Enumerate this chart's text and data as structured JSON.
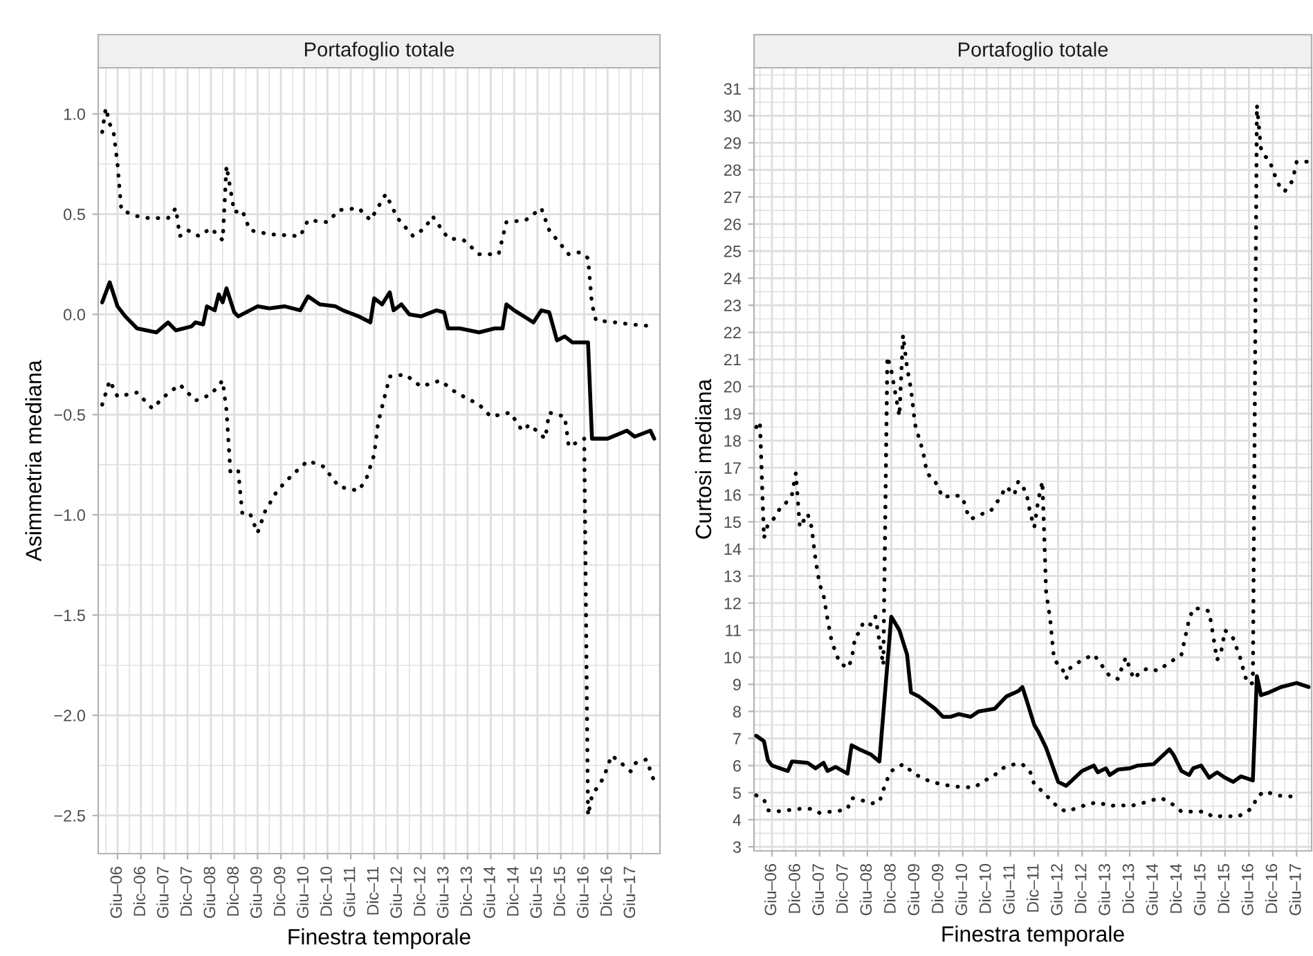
{
  "chart_data": [
    {
      "type": "line",
      "title": "Portafoglio totale",
      "xlabel": "Finestra temporale",
      "ylabel": "Asimmetria mediana",
      "grid": true,
      "xlim": [
        "2006-01-01",
        "2018-01-15"
      ],
      "ylim": [
        -2.69,
        1.23
      ],
      "xticks": [
        {
          "value": "2006-06-01",
          "label": "Giu–06"
        },
        {
          "value": "2006-12-01",
          "label": "Dic–06"
        },
        {
          "value": "2007-06-01",
          "label": "Giu–07"
        },
        {
          "value": "2007-12-01",
          "label": "Dic–07"
        },
        {
          "value": "2008-06-01",
          "label": "Giu–08"
        },
        {
          "value": "2008-12-01",
          "label": "Dic–08"
        },
        {
          "value": "2009-06-01",
          "label": "Giu–09"
        },
        {
          "value": "2009-12-01",
          "label": "Dic–09"
        },
        {
          "value": "2010-06-01",
          "label": "Giu–10"
        },
        {
          "value": "2010-12-01",
          "label": "Dic–10"
        },
        {
          "value": "2011-06-01",
          "label": "Giu–11"
        },
        {
          "value": "2011-12-01",
          "label": "Dic–11"
        },
        {
          "value": "2012-06-01",
          "label": "Giu–12"
        },
        {
          "value": "2012-12-01",
          "label": "Dic–12"
        },
        {
          "value": "2013-06-01",
          "label": "Giu–13"
        },
        {
          "value": "2013-12-01",
          "label": "Dic–13"
        },
        {
          "value": "2014-06-01",
          "label": "Giu–14"
        },
        {
          "value": "2014-12-01",
          "label": "Dic–14"
        },
        {
          "value": "2015-06-01",
          "label": "Giu–15"
        },
        {
          "value": "2015-12-01",
          "label": "Dic–15"
        },
        {
          "value": "2016-06-01",
          "label": "Giu–16"
        },
        {
          "value": "2016-12-01",
          "label": "Dic–16"
        },
        {
          "value": "2017-06-01",
          "label": "Giu–17"
        }
      ],
      "yticks": [
        {
          "value": 1,
          "label": "1.0"
        },
        0.5,
        {
          "value": 0,
          "label": "0.0"
        },
        {
          "value": -0.5,
          "label": "−0.5"
        },
        {
          "value": -1,
          "label": "−1.0"
        },
        {
          "value": -1.5,
          "label": "−1.5"
        },
        {
          "value": -2,
          "label": "−2.0"
        },
        {
          "value": -2.5,
          "label": "−2.5"
        }
      ],
      "series": [
        {
          "color": "#000000",
          "line_style": "dotted",
          "x": [
            "2006-02",
            "2006-03",
            "2006-04",
            "2006-05",
            "2006-06",
            "2006-07",
            "2006-11",
            "2007-02",
            "2007-07",
            "2007-09",
            "2007-10",
            "2007-12",
            "2008-03",
            "2008-06",
            "2008-09",
            "2008-10",
            "2008-12",
            "2009-02",
            "2009-04",
            "2009-09",
            "2010-05",
            "2010-07",
            "2010-12",
            "2011-03",
            "2011-08",
            "2011-11",
            "2012-03",
            "2012-06",
            "2012-10",
            "2013-01",
            "2013-03",
            "2013-07",
            "2013-11",
            "2014-03",
            "2014-08",
            "2014-10",
            "2015-03",
            "2015-07",
            "2015-09",
            "2016-02",
            "2016-05",
            "2016-07",
            "2016-08",
            "2016-09",
            "2017-02",
            "2017-06",
            "2017-12"
          ],
          "values": [
            0.91,
            1.03,
            0.95,
            0.91,
            0.75,
            0.52,
            0.49,
            0.48,
            0.48,
            0.53,
            0.39,
            0.42,
            0.39,
            0.43,
            0.37,
            0.74,
            0.51,
            0.52,
            0.42,
            0.4,
            0.39,
            0.47,
            0.46,
            0.52,
            0.53,
            0.47,
            0.6,
            0.48,
            0.39,
            0.43,
            0.49,
            0.38,
            0.37,
            0.3,
            0.3,
            0.46,
            0.47,
            0.53,
            0.42,
            0.3,
            0.31,
            0.28,
            0.05,
            -0.03,
            -0.04,
            -0.05,
            -0.06
          ]
        },
        {
          "color": "#000000",
          "line_style": "solid",
          "x": [
            "2006-02",
            "2006-04",
            "2006-06",
            "2006-08",
            "2006-11",
            "2007-04",
            "2007-07",
            "2007-09",
            "2008-01",
            "2008-02",
            "2008-04",
            "2008-05",
            "2008-07",
            "2008-08",
            "2008-09",
            "2008-10",
            "2008-12",
            "2009-01",
            "2009-06",
            "2009-09",
            "2010-01",
            "2010-05",
            "2010-07",
            "2010-10",
            "2011-02",
            "2011-04",
            "2011-08",
            "2011-11",
            "2011-12",
            "2012-02",
            "2012-04",
            "2012-05",
            "2012-07",
            "2012-09",
            "2012-12",
            "2013-04",
            "2013-06",
            "2013-07",
            "2013-10",
            "2014-03",
            "2014-07",
            "2014-09",
            "2014-10",
            "2014-12",
            "2015-05",
            "2015-07",
            "2015-09",
            "2015-11",
            "2016-01",
            "2016-03",
            "2016-06",
            "2016-07",
            "2016-08",
            "2016-12",
            "2017-05",
            "2017-07",
            "2017-11",
            "2017-12"
          ],
          "values": [
            0.06,
            0.16,
            0.04,
            -0.01,
            -0.07,
            -0.09,
            -0.04,
            -0.08,
            -0.06,
            -0.04,
            -0.05,
            0.04,
            0.02,
            0.1,
            0.06,
            0.13,
            0.01,
            -0.01,
            0.04,
            0.03,
            0.04,
            0.02,
            0.09,
            0.05,
            0.04,
            0.02,
            -0.01,
            -0.04,
            0.08,
            0.05,
            0.11,
            0.02,
            0.05,
            0.0,
            -0.01,
            0.02,
            0.01,
            -0.07,
            -0.07,
            -0.09,
            -0.07,
            -0.07,
            0.05,
            0.02,
            -0.04,
            0.02,
            0.01,
            -0.13,
            -0.11,
            -0.14,
            -0.14,
            -0.14,
            -0.62,
            -0.62,
            -0.58,
            -0.61,
            -0.58,
            -0.62
          ]
        },
        {
          "color": "#000000",
          "line_style": "dotted",
          "x": [
            "2006-02",
            "2006-04",
            "2006-06",
            "2006-11",
            "2007-03",
            "2007-06",
            "2007-10",
            "2008-02",
            "2008-06",
            "2008-09",
            "2008-10",
            "2008-11",
            "2009-01",
            "2009-02",
            "2009-04",
            "2009-06",
            "2009-08",
            "2009-11",
            "2010-03",
            "2010-07",
            "2010-11",
            "2011-03",
            "2011-08",
            "2011-10",
            "2011-12",
            "2012-01",
            "2012-04",
            "2012-08",
            "2012-12",
            "2013-05",
            "2013-09",
            "2014-03",
            "2014-06",
            "2014-11",
            "2015-02",
            "2015-04",
            "2015-08",
            "2015-09",
            "2016-01",
            "2016-02",
            "2016-06",
            "2016-07",
            "2016-08",
            "2016-11",
            "2017-01",
            "2017-03",
            "2017-06",
            "2017-07",
            "2017-10",
            "2017-12"
          ],
          "values": [
            -0.45,
            -0.33,
            -0.41,
            -0.39,
            -0.47,
            -0.41,
            -0.35,
            -0.43,
            -0.4,
            -0.33,
            -0.48,
            -0.79,
            -0.78,
            -0.99,
            -0.99,
            -1.09,
            -0.98,
            -0.88,
            -0.8,
            -0.73,
            -0.76,
            -0.86,
            -0.88,
            -0.82,
            -0.7,
            -0.54,
            -0.31,
            -0.3,
            -0.36,
            -0.33,
            -0.39,
            -0.45,
            -0.51,
            -0.49,
            -0.58,
            -0.55,
            -0.62,
            -0.49,
            -0.51,
            -0.66,
            -0.62,
            -2.5,
            -2.4,
            -2.31,
            -2.2,
            -2.23,
            -2.28,
            -2.24,
            -2.22,
            -2.33
          ]
        }
      ]
    },
    {
      "type": "line",
      "title": "Portafoglio totale",
      "xlabel": "Finestra temporale",
      "ylabel": "Curtosi mediana",
      "grid": true,
      "xlim": [
        "2006-01-15",
        "2017-09-24"
      ],
      "ylim": [
        2.85,
        31.77
      ],
      "xticks": [
        {
          "value": "2006-06-01",
          "label": "Giu–06"
        },
        {
          "value": "2006-12-01",
          "label": "Dic–06"
        },
        {
          "value": "2007-06-01",
          "label": "Giu–07"
        },
        {
          "value": "2007-12-01",
          "label": "Dic–07"
        },
        {
          "value": "2008-06-01",
          "label": "Giu–08"
        },
        {
          "value": "2008-12-01",
          "label": "Dic–08"
        },
        {
          "value": "2009-06-01",
          "label": "Giu–09"
        },
        {
          "value": "2009-12-01",
          "label": "Dic–09"
        },
        {
          "value": "2010-06-01",
          "label": "Giu–10"
        },
        {
          "value": "2010-12-01",
          "label": "Dic–10"
        },
        {
          "value": "2011-06-01",
          "label": "Giu–11"
        },
        {
          "value": "2011-12-01",
          "label": "Dic–11"
        },
        {
          "value": "2012-06-01",
          "label": "Giu–12"
        },
        {
          "value": "2012-12-01",
          "label": "Dic–12"
        },
        {
          "value": "2013-06-01",
          "label": "Giu–13"
        },
        {
          "value": "2013-12-01",
          "label": "Dic–13"
        },
        {
          "value": "2014-06-01",
          "label": "Giu–14"
        },
        {
          "value": "2014-12-01",
          "label": "Dic–14"
        },
        {
          "value": "2015-06-01",
          "label": "Giu–15"
        },
        {
          "value": "2015-12-01",
          "label": "Dic–15"
        },
        {
          "value": "2016-06-01",
          "label": "Giu–16"
        },
        {
          "value": "2016-12-01",
          "label": "Dic–16"
        },
        {
          "value": "2017-06-01",
          "label": "Giu–17"
        }
      ],
      "yticks": [
        3,
        4,
        5,
        6,
        7,
        8,
        9,
        10,
        11,
        12,
        13,
        14,
        15,
        16,
        17,
        18,
        19,
        20,
        21,
        22,
        23,
        24,
        25,
        26,
        27,
        28,
        29,
        30,
        31
      ],
      "series": [
        {
          "color": "#000000",
          "line_style": "dotted",
          "x": [
            "2006-02",
            "2006-03",
            "2006-04",
            "2006-05",
            "2006-07",
            "2006-08",
            "2006-09",
            "2006-11",
            "2006-12",
            "2007-01",
            "2007-03",
            "2007-04",
            "2007-05",
            "2007-06",
            "2007-07",
            "2007-08",
            "2007-09",
            "2007-10",
            "2007-11",
            "2008-01",
            "2008-02",
            "2008-03",
            "2008-04",
            "2008-05",
            "2008-07",
            "2008-08",
            "2008-09",
            "2008-10",
            "2008-11",
            "2008-12",
            "2009-02",
            "2009-03",
            "2009-04",
            "2009-05",
            "2009-06",
            "2009-07",
            "2009-08",
            "2009-09",
            "2009-11",
            "2010-01",
            "2010-04",
            "2010-06",
            "2010-07",
            "2010-08",
            "2010-11",
            "2011-01",
            "2011-03",
            "2011-05",
            "2011-07",
            "2011-08",
            "2011-10",
            "2011-11",
            "2011-12",
            "2012-01",
            "2012-02",
            "2012-03",
            "2012-04",
            "2012-05",
            "2012-07",
            "2012-08",
            "2012-09",
            "2012-12",
            "2013-03",
            "2013-05",
            "2013-07",
            "2013-09",
            "2013-11",
            "2014-01",
            "2014-03",
            "2014-05",
            "2014-07",
            "2014-11",
            "2015-01",
            "2015-03",
            "2015-04",
            "2015-06",
            "2015-08",
            "2015-09",
            "2015-10",
            "2015-11",
            "2015-12",
            "2016-02",
            "2016-04",
            "2016-05",
            "2016-06",
            "2016-07",
            "2016-08",
            "2016-09",
            "2016-10",
            "2016-11",
            "2016-12",
            "2017-01",
            "2017-02",
            "2017-03",
            "2017-05",
            "2017-06",
            "2017-09"
          ],
          "values": [
            18.5,
            18.7,
            14.4,
            14.9,
            15.2,
            15.5,
            15.6,
            16.0,
            16.8,
            14.8,
            15.3,
            14.8,
            13.6,
            12.7,
            12.3,
            11.4,
            10.6,
            10.2,
            9.8,
            9.6,
            9.9,
            10.8,
            10.9,
            11.3,
            11.2,
            11.5,
            10.6,
            9.7,
            21.1,
            20.6,
            18.9,
            21.9,
            20.7,
            19.9,
            18.6,
            18.1,
            17.6,
            16.8,
            16.5,
            15.9,
            16.0,
            15.9,
            15.4,
            15.1,
            15.3,
            15.4,
            15.8,
            16.3,
            16.0,
            16.5,
            16.1,
            15.3,
            14.8,
            15.8,
            16.5,
            12.4,
            11.4,
            9.9,
            9.6,
            9.2,
            9.6,
            9.9,
            10.1,
            9.7,
            9.3,
            9.2,
            10.0,
            9.2,
            9.5,
            9.6,
            9.5,
            9.9,
            10.1,
            11.4,
            11.8,
            11.8,
            11.7,
            10.8,
            9.9,
            10.2,
            11.0,
            10.7,
            9.9,
            9.3,
            9.0,
            9.05,
            30.4,
            28.8,
            28.5,
            28.4,
            28.0,
            27.6,
            27.3,
            27.2,
            27.6,
            28.3,
            28.3
          ]
        },
        {
          "color": "#000000",
          "line_style": "solid",
          "x": [
            "2006-02",
            "2006-04",
            "2006-05",
            "2006-06",
            "2006-10",
            "2006-11",
            "2007-03",
            "2007-05",
            "2007-07",
            "2007-08",
            "2007-10",
            "2008-01",
            "2008-02",
            "2008-04",
            "2008-07",
            "2008-09",
            "2008-12",
            "2009-02",
            "2009-04",
            "2009-05",
            "2009-07",
            "2009-11",
            "2010-01",
            "2010-03",
            "2010-05",
            "2010-08",
            "2010-10",
            "2011-02",
            "2011-05",
            "2011-08",
            "2011-09",
            "2011-10",
            "2011-12",
            "2012-01",
            "2012-03",
            "2012-06",
            "2012-08",
            "2012-12",
            "2013-03",
            "2013-04",
            "2013-06",
            "2013-07",
            "2013-09",
            "2013-12",
            "2014-02",
            "2014-06",
            "2014-10",
            "2014-11",
            "2015-01",
            "2015-03",
            "2015-04",
            "2015-06",
            "2015-08",
            "2015-10",
            "2015-12",
            "2016-02",
            "2016-04",
            "2016-07",
            "2016-08",
            "2016-09",
            "2016-11",
            "2017-02",
            "2017-06",
            "2017-09"
          ],
          "values": [
            7.1,
            6.9,
            6.2,
            6.0,
            5.8,
            6.15,
            6.1,
            5.9,
            6.1,
            5.8,
            5.95,
            5.7,
            6.75,
            6.6,
            6.4,
            6.15,
            11.5,
            11.0,
            10.1,
            8.7,
            8.55,
            8.1,
            7.8,
            7.8,
            7.9,
            7.8,
            8.0,
            8.1,
            8.55,
            8.75,
            8.9,
            8.45,
            7.5,
            7.25,
            6.65,
            5.4,
            5.25,
            5.8,
            6.0,
            5.75,
            5.9,
            5.65,
            5.85,
            5.9,
            6.0,
            6.05,
            6.6,
            6.4,
            5.8,
            5.65,
            5.9,
            6.0,
            5.55,
            5.75,
            5.55,
            5.4,
            5.6,
            5.45,
            9.3,
            8.6,
            8.7,
            8.9,
            9.05,
            8.9
          ]
        },
        {
          "color": "#000000",
          "line_style": "dotted",
          "x": [
            "2006-02",
            "2006-04",
            "2006-05",
            "2006-07",
            "2006-10",
            "2007-01",
            "2007-04",
            "2007-06",
            "2007-09",
            "2007-12",
            "2008-01",
            "2008-02",
            "2008-04",
            "2008-07",
            "2008-09",
            "2008-10",
            "2008-11",
            "2008-12",
            "2009-03",
            "2009-05",
            "2009-07",
            "2009-10",
            "2010-01",
            "2010-03",
            "2010-06",
            "2010-09",
            "2010-11",
            "2011-02",
            "2011-04",
            "2011-07",
            "2011-09",
            "2011-11",
            "2011-12",
            "2012-02",
            "2012-04",
            "2012-06",
            "2012-08",
            "2012-10",
            "2013-01",
            "2013-04",
            "2013-07",
            "2013-09",
            "2013-12",
            "2014-03",
            "2014-05",
            "2014-08",
            "2014-11",
            "2015-01",
            "2015-04",
            "2015-07",
            "2015-09",
            "2015-12",
            "2016-03",
            "2016-05",
            "2016-07",
            "2016-08",
            "2016-10",
            "2017-01",
            "2017-04",
            "2017-06"
          ],
          "values": [
            4.9,
            4.75,
            4.35,
            4.3,
            4.35,
            4.4,
            4.4,
            4.25,
            4.3,
            4.35,
            4.4,
            4.8,
            4.75,
            4.6,
            4.65,
            5.1,
            5.5,
            5.8,
            6.05,
            5.8,
            5.6,
            5.4,
            5.3,
            5.25,
            5.2,
            5.2,
            5.4,
            5.65,
            5.9,
            6.05,
            6.05,
            5.75,
            5.3,
            5.05,
            4.75,
            4.45,
            4.3,
            4.4,
            4.55,
            4.65,
            4.5,
            4.55,
            4.5,
            4.6,
            4.7,
            4.8,
            4.55,
            4.3,
            4.3,
            4.3,
            4.1,
            4.15,
            4.1,
            4.25,
            4.45,
            4.85,
            5.05,
            4.9,
            4.85,
            4.9
          ]
        }
      ]
    }
  ]
}
